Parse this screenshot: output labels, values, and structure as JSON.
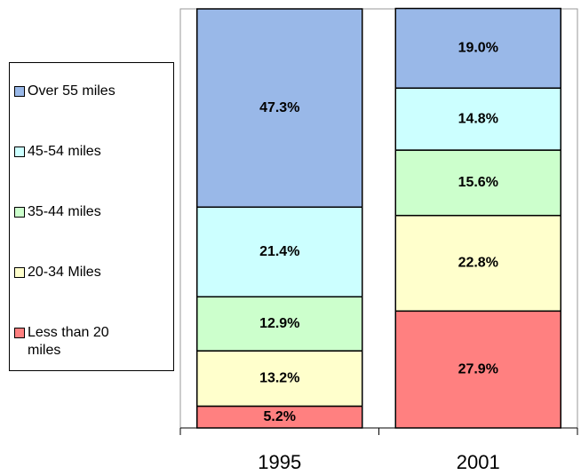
{
  "chart_data": {
    "type": "stacked-bar",
    "categories": [
      "1995",
      "2001"
    ],
    "series": [
      {
        "name": "Less than 20 miles",
        "color": "#ff8080",
        "values": [
          5.2,
          27.9
        ],
        "value_labels": [
          "5.2%",
          "27.9%"
        ]
      },
      {
        "name": "20-34 Miles",
        "color": "#ffffcc",
        "values": [
          13.2,
          22.8
        ],
        "value_labels": [
          "13.2%",
          "22.8%"
        ]
      },
      {
        "name": "35-44 miles",
        "color": "#ccffcc",
        "values": [
          12.9,
          15.6
        ],
        "value_labels": [
          "12.9%",
          "15.6%"
        ]
      },
      {
        "name": "45-54 miles",
        "color": "#ccffff",
        "values": [
          21.4,
          14.8
        ],
        "value_labels": [
          "21.4%",
          "14.8%"
        ]
      },
      {
        "name": "Over 55 miles",
        "color": "#99b8e8",
        "values": [
          47.3,
          19.0
        ],
        "value_labels": [
          "47.3%",
          "19.0%"
        ]
      }
    ],
    "ylim": [
      0,
      100
    ],
    "legend": "left"
  }
}
